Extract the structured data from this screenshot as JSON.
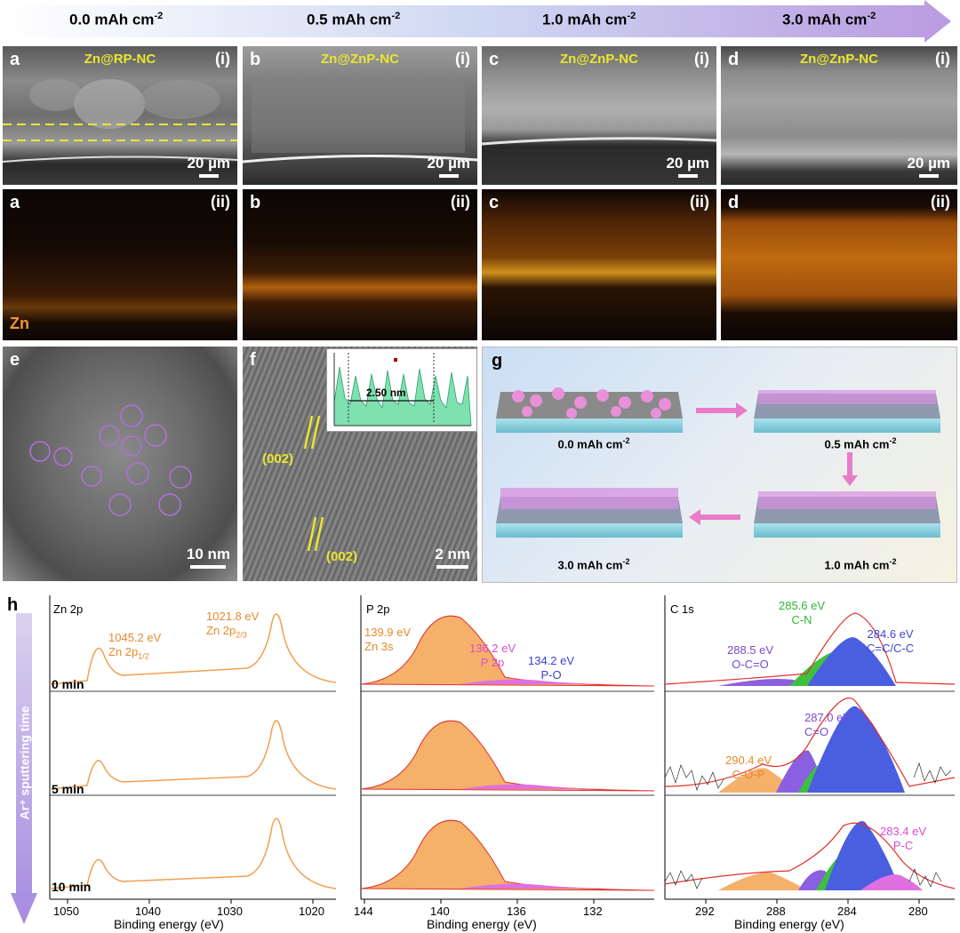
{
  "arrow": {
    "labels": [
      "0.0 mAh cm",
      "0.5 mAh cm",
      "1.0 mAh cm",
      "3.0 mAh cm"
    ],
    "exponent": "-2"
  },
  "row1": [
    {
      "letter": "a",
      "roman": "(i)",
      "title": "Zn@RP-NC",
      "scale": "20 µm"
    },
    {
      "letter": "b",
      "roman": "(i)",
      "title": "Zn@ZnP-NC",
      "scale": "20 µm"
    },
    {
      "letter": "c",
      "roman": "(i)",
      "title": "Zn@ZnP-NC",
      "scale": "20 µm"
    },
    {
      "letter": "d",
      "roman": "(i)",
      "title": "Zn@ZnP-NC",
      "scale": "20 µm"
    }
  ],
  "row2": [
    {
      "letter": "a",
      "roman": "(ii)"
    },
    {
      "letter": "b",
      "roman": "(ii)"
    },
    {
      "letter": "c",
      "roman": "(ii)"
    },
    {
      "letter": "d",
      "roman": "(ii)"
    }
  ],
  "zn_label": "Zn",
  "panel_e": {
    "letter": "e",
    "scale": "10 nm"
  },
  "panel_f": {
    "letter": "f",
    "scale": "2 nm",
    "plane": "(002)",
    "inset_label": "2.50 nm"
  },
  "panel_g": {
    "letter": "g",
    "labels": [
      "0.0 mAh cm",
      "0.5 mAh cm",
      "3.0 mAh cm",
      "1.0 mAh cm"
    ],
    "exponent": "-2"
  },
  "panel_h": {
    "letter": "h",
    "yaxis": "Ar⁺ sputtering time",
    "times": [
      "0 min",
      "5 min",
      "10 min"
    ],
    "xlabel": "Binding energy (eV)",
    "zn": {
      "title": "Zn 2p",
      "ticks": [
        "1050",
        "1040",
        "1030",
        "1020"
      ],
      "peak1": "1045.2 eV",
      "peak1_name": "Zn 2p",
      "peak1_sub": "1/2",
      "peak2": "1021.8 eV",
      "peak2_name": "Zn 2p",
      "peak2_sub": "2/3"
    },
    "p": {
      "title": "P 2p",
      "ticks": [
        "144",
        "140",
        "136",
        "132"
      ],
      "peaks": [
        {
          "ev": "139.9 eV",
          "name": "Zn 3s",
          "color": "#f08a2c"
        },
        {
          "ev": "136.2 eV",
          "name": "P 2p",
          "color": "#d64fd0"
        },
        {
          "ev": "134.2 eV",
          "name": "P-O",
          "color": "#3a3fcc"
        }
      ]
    },
    "c": {
      "title": "C 1s",
      "ticks": [
        "292",
        "288",
        "284",
        "280"
      ],
      "peaks_top": [
        {
          "ev": "285.6 eV",
          "name": "C-N",
          "color": "#2fb52f"
        },
        {
          "ev": "284.6 eV",
          "name": "C=C/C-C",
          "color": "#3a48d6"
        },
        {
          "ev": "288.5 eV",
          "name": "O-C=O",
          "color": "#7b49d4"
        }
      ],
      "peaks_mid": [
        {
          "ev": "287.0 eV",
          "name": "C=O",
          "color": "#7b49d4"
        },
        {
          "ev": "290.4 eV",
          "name": "C-O-P",
          "color": "#f08a2c"
        }
      ],
      "peaks_bot": [
        {
          "ev": "283.4 eV",
          "name": "P-C",
          "color": "#d64fd0"
        }
      ]
    }
  },
  "colors": {
    "orange": "#f0a050",
    "fill_orange": "#f5b06a",
    "green": "#3fbf3f",
    "blue": "#4a5ee0",
    "purple": "#8a5fe0",
    "pink": "#e070e0",
    "red": "#e0302a"
  }
}
